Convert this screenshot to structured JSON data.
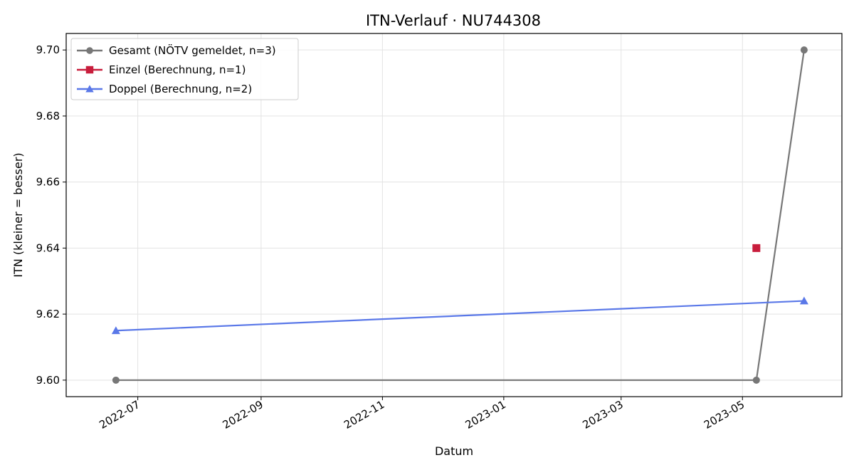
{
  "chart_data": {
    "type": "line",
    "title": "ITN-Verlauf · NU744308",
    "xlabel": "Datum",
    "ylabel": "ITN  (kleiner = besser)",
    "x_range": [
      "2022-05-26",
      "2023-06-20"
    ],
    "ylim": [
      9.595,
      9.705
    ],
    "y_ticks": [
      9.6,
      9.62,
      9.64,
      9.66,
      9.68,
      9.7
    ],
    "y_tick_labels": [
      "9.60",
      "9.62",
      "9.64",
      "9.66",
      "9.68",
      "9.70"
    ],
    "x_ticks": [
      "2022-07-01",
      "2022-09-01",
      "2022-11-01",
      "2023-01-01",
      "2023-03-01",
      "2023-05-01"
    ],
    "x_tick_labels": [
      "2022-07",
      "2022-09",
      "2022-11",
      "2023-01",
      "2023-03",
      "2023-05"
    ],
    "grid": true,
    "legend_position": "top-left",
    "series": [
      {
        "name": "Gesamt (NÖTV gemeldet, n=3)",
        "color": "#777777",
        "marker": "circle",
        "points": [
          {
            "x": "2022-06-20",
            "y": 9.6
          },
          {
            "x": "2023-05-08",
            "y": 9.6
          },
          {
            "x": "2023-06-01",
            "y": 9.7
          }
        ]
      },
      {
        "name": "Einzel (Berechnung, n=1)",
        "color": "#c81d3c",
        "marker": "square",
        "points": [
          {
            "x": "2023-05-08",
            "y": 9.64
          }
        ]
      },
      {
        "name": "Doppel (Berechnung, n=2)",
        "color": "#5a78e8",
        "marker": "triangle",
        "points": [
          {
            "x": "2022-06-20",
            "y": 9.615
          },
          {
            "x": "2023-06-01",
            "y": 9.624
          }
        ]
      }
    ]
  }
}
